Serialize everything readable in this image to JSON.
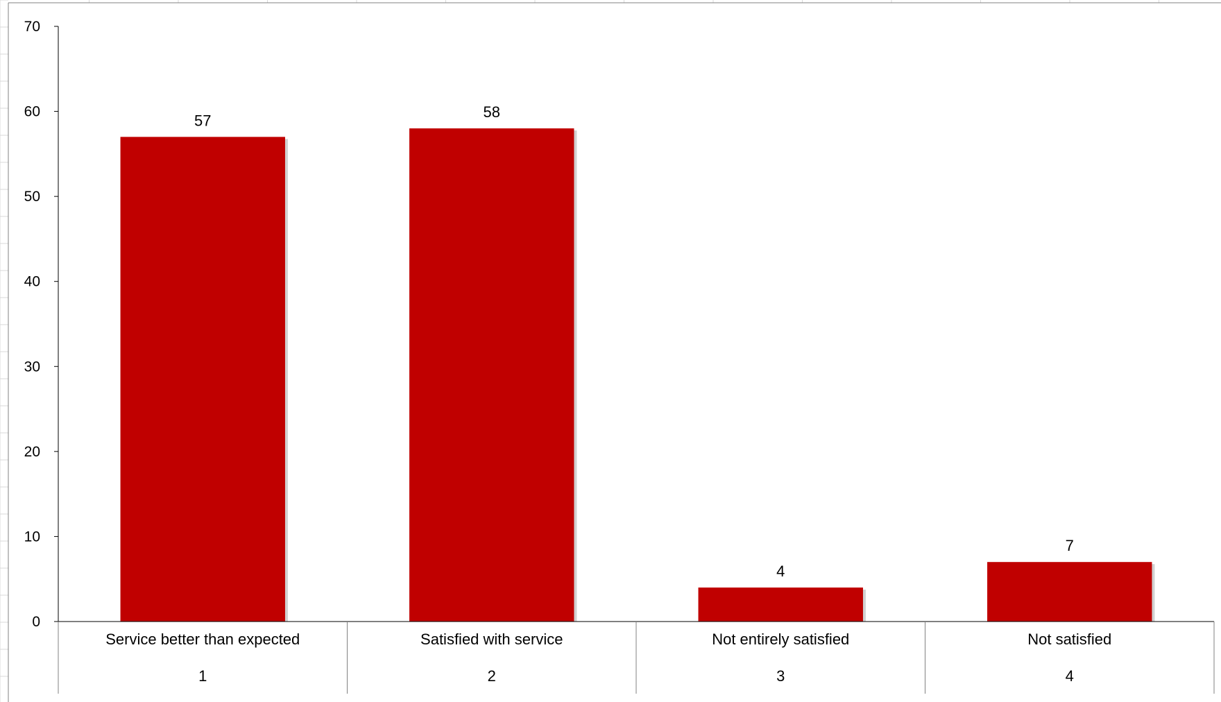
{
  "chart_data": {
    "type": "bar",
    "categories": [
      {
        "label": "Service better than expected",
        "code": "1"
      },
      {
        "label": "Satisfied with service",
        "code": "2"
      },
      {
        "label": "Not entirely satisfied",
        "code": "3"
      },
      {
        "label": "Not satisfied",
        "code": "4"
      }
    ],
    "values": [
      57,
      58,
      4,
      7
    ],
    "ylim": [
      0,
      70
    ],
    "yticks": [
      "0",
      "10",
      "20",
      "30",
      "40",
      "50",
      "60",
      "70"
    ],
    "title": "",
    "xlabel": "",
    "ylabel": "",
    "legend": "none",
    "grid": false,
    "bar_color": "#C00000"
  }
}
